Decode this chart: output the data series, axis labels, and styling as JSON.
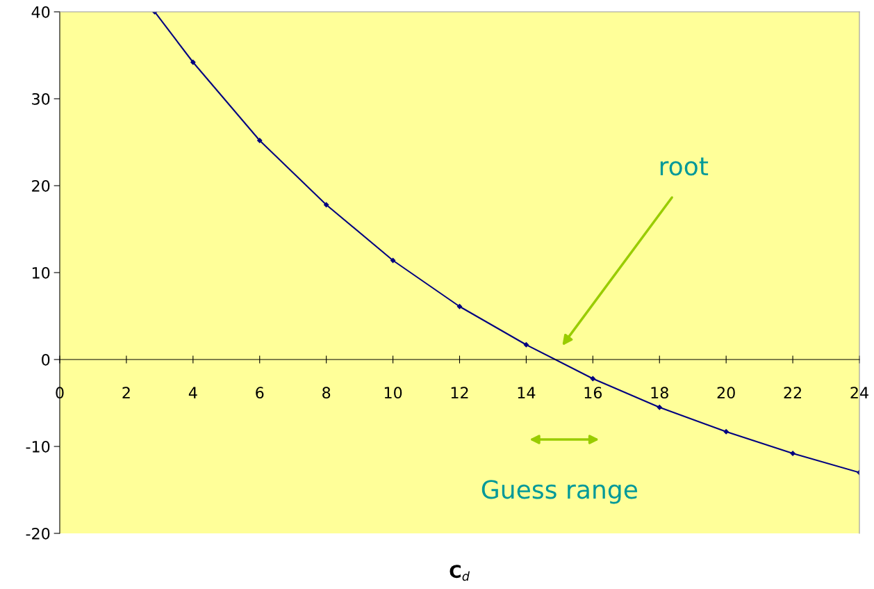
{
  "chart_data": {
    "type": "line",
    "xlabel": "C$_{d}$",
    "x": [
      2.85,
      4,
      6,
      8,
      10,
      12,
      14,
      16,
      18,
      20,
      22,
      24
    ],
    "series": [
      {
        "color": "#000080",
        "values": [
          40,
          34.2,
          25.2,
          17.8,
          11.4,
          6.1,
          1.7,
          -2.2,
          -5.5,
          -8.3,
          -10.8,
          -13.0
        ]
      }
    ],
    "xlim": [
      0,
      24
    ],
    "xticks": [
      0,
      2,
      4,
      6,
      8,
      10,
      12,
      14,
      16,
      18,
      20,
      22,
      24
    ],
    "ylim": [
      -20,
      40
    ],
    "yticks": [
      -20,
      -10,
      0,
      10,
      20,
      30,
      40
    ],
    "marker": "diamond",
    "grid": false,
    "legend": false,
    "annotations": [
      "root",
      "Guess range"
    ]
  }
}
